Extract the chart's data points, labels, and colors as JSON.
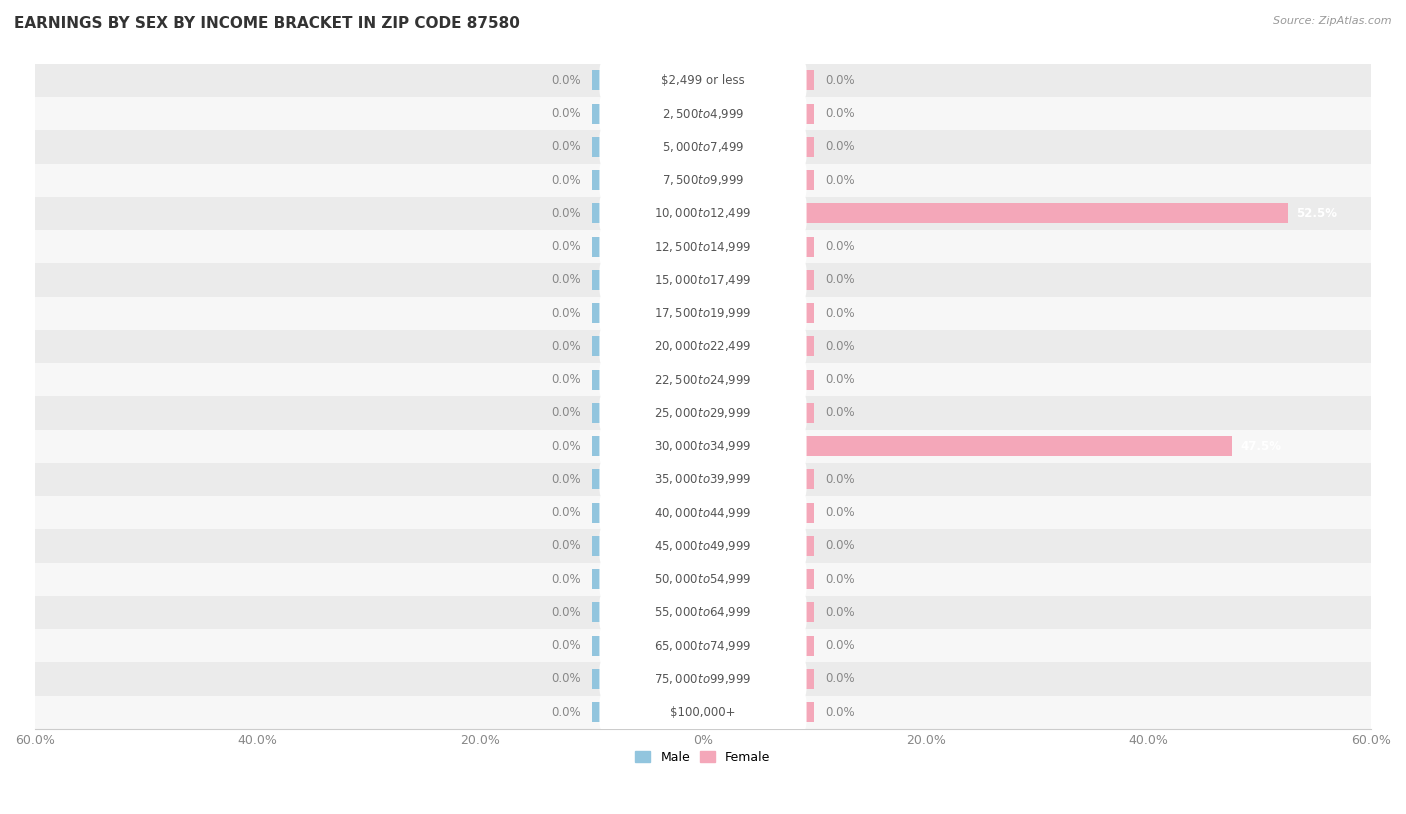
{
  "title": "EARNINGS BY SEX BY INCOME BRACKET IN ZIP CODE 87580",
  "source": "Source: ZipAtlas.com",
  "categories": [
    "$2,499 or less",
    "$2,500 to $4,999",
    "$5,000 to $7,499",
    "$7,500 to $9,999",
    "$10,000 to $12,499",
    "$12,500 to $14,999",
    "$15,000 to $17,499",
    "$17,500 to $19,999",
    "$20,000 to $22,499",
    "$22,500 to $24,999",
    "$25,000 to $29,999",
    "$30,000 to $34,999",
    "$35,000 to $39,999",
    "$40,000 to $44,999",
    "$45,000 to $49,999",
    "$50,000 to $54,999",
    "$55,000 to $64,999",
    "$65,000 to $74,999",
    "$75,000 to $99,999",
    "$100,000+"
  ],
  "male_values": [
    0.0,
    0.0,
    0.0,
    0.0,
    0.0,
    0.0,
    0.0,
    0.0,
    0.0,
    0.0,
    0.0,
    0.0,
    0.0,
    0.0,
    0.0,
    0.0,
    0.0,
    0.0,
    0.0,
    0.0
  ],
  "female_values": [
    0.0,
    0.0,
    0.0,
    0.0,
    52.5,
    0.0,
    0.0,
    0.0,
    0.0,
    0.0,
    0.0,
    47.5,
    0.0,
    0.0,
    0.0,
    0.0,
    0.0,
    0.0,
    0.0,
    0.0
  ],
  "male_color": "#92c5de",
  "female_color": "#f4a7b9",
  "male_label": "Male",
  "female_label": "Female",
  "axis_limit": 60.0,
  "stub_size": 10.0,
  "background_color": "#ffffff",
  "row_bg_odd": "#ebebeb",
  "row_bg_even": "#f7f7f7",
  "text_color": "#555555",
  "title_fontsize": 11,
  "tick_fontsize": 9,
  "label_fontsize": 8.5,
  "category_fontsize": 8.5,
  "source_fontsize": 8,
  "value_label_color": "#888888",
  "active_value_label_color": "#ffffff"
}
